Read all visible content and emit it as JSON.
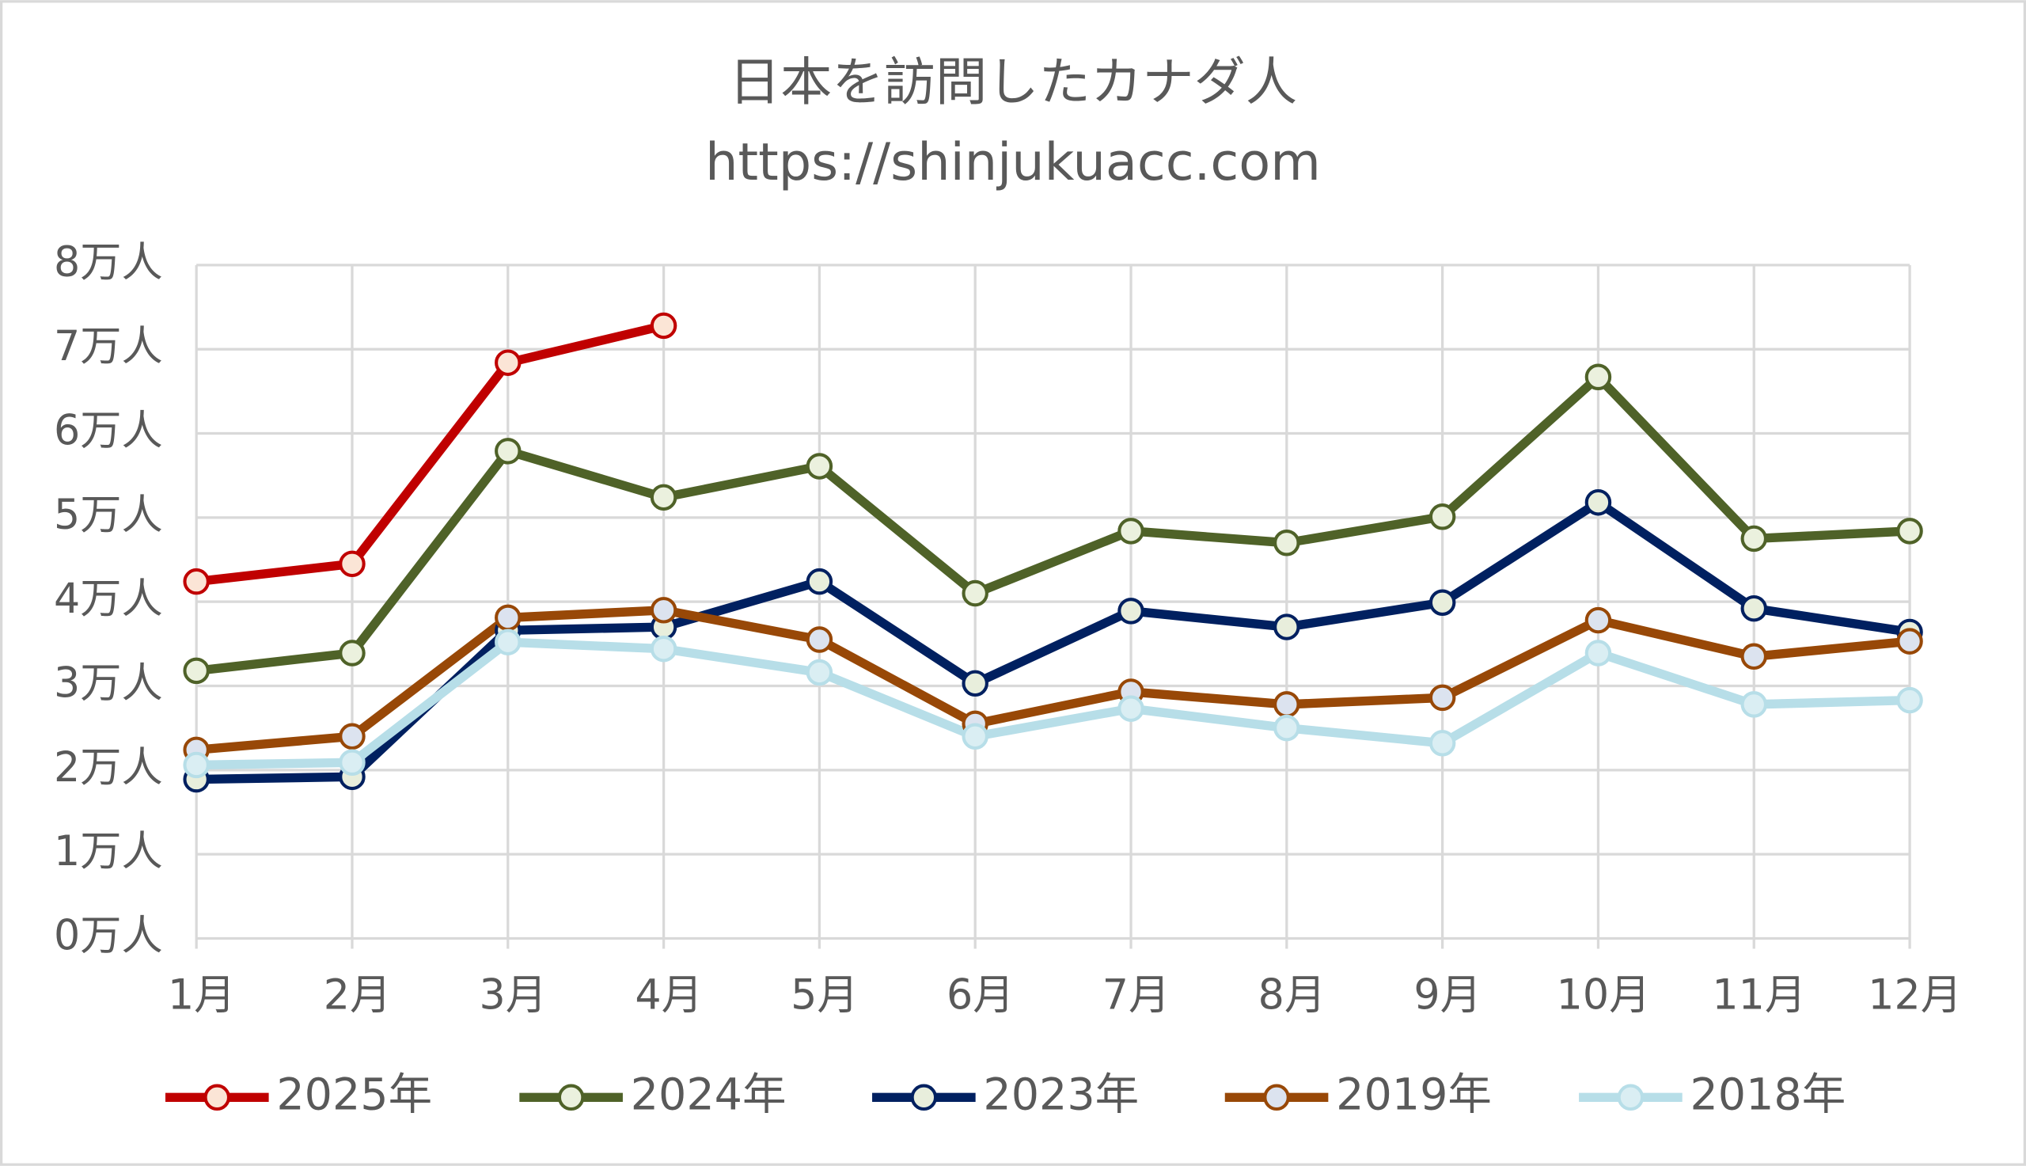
{
  "chart_data": {
    "type": "line",
    "title": "日本を訪問したカナダ人",
    "subtitle": "https://shinjukuacc.com",
    "categories": [
      "1月",
      "2月",
      "3月",
      "4月",
      "5月",
      "6月",
      "7月",
      "8月",
      "9月",
      "10月",
      "11月",
      "12月"
    ],
    "series": [
      {
        "name": "2025年",
        "color": "#c00000",
        "marker_fill": "#fbe5d6",
        "values": [
          4.24,
          4.45,
          6.84,
          7.28,
          null,
          null,
          null,
          null,
          null,
          null,
          null,
          null
        ]
      },
      {
        "name": "2024年",
        "color": "#4f6228",
        "marker_fill": "#ebf1de",
        "values": [
          3.18,
          3.39,
          5.79,
          5.24,
          5.61,
          4.1,
          4.84,
          4.7,
          5.01,
          6.67,
          4.75,
          4.84
        ]
      },
      {
        "name": "2023年",
        "color": "#002060",
        "marker_fill": "#e8eedc",
        "values": [
          1.89,
          1.92,
          3.66,
          3.7,
          4.24,
          3.03,
          3.89,
          3.7,
          3.99,
          5.18,
          3.92,
          3.64
        ]
      },
      {
        "name": "2019年",
        "color": "#984807",
        "marker_fill": "#dce3ef",
        "values": [
          2.24,
          2.4,
          3.81,
          3.9,
          3.55,
          2.55,
          2.93,
          2.78,
          2.86,
          3.78,
          3.35,
          3.53
        ]
      },
      {
        "name": "2018年",
        "color": "#b7dee8",
        "marker_fill": "#daeef3",
        "values": [
          2.06,
          2.09,
          3.52,
          3.44,
          3.16,
          2.4,
          2.73,
          2.5,
          2.32,
          3.39,
          2.78,
          2.83
        ]
      }
    ],
    "ylim": [
      0,
      8
    ],
    "yticks": [
      {
        "value": 0,
        "label": "0万人"
      },
      {
        "value": 1,
        "label": "1万人"
      },
      {
        "value": 2,
        "label": "2万人"
      },
      {
        "value": 3,
        "label": "3万人"
      },
      {
        "value": 4,
        "label": "4万人"
      },
      {
        "value": 5,
        "label": "5万人"
      },
      {
        "value": 6,
        "label": "6万人"
      },
      {
        "value": 7,
        "label": "7万人"
      },
      {
        "value": 8,
        "label": "8万人"
      }
    ],
    "grid": true,
    "legend": "bottom"
  }
}
